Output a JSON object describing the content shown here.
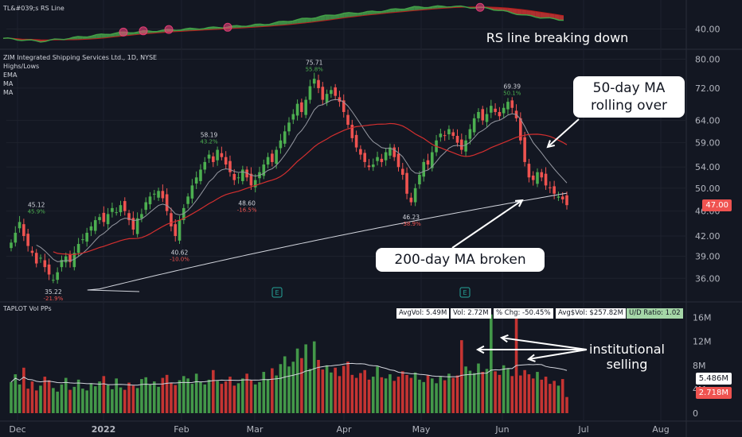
{
  "rs_panel": {
    "legend": "TL&#039;s RS Line",
    "axis_label": "40.00",
    "annotation": "RS line breaking down"
  },
  "price_panel": {
    "legend_title": "ZIM Integrated Shipping Services Ltd., 1D, NYSE",
    "legend_items": [
      "Highs/Lows",
      "EMA",
      "MA",
      "MA"
    ],
    "price_badge": "47.00",
    "earnings_marker": "E",
    "annotations": {
      "ma50": "50-day MA rolling over",
      "ma200": "200-day MA broken"
    }
  },
  "volume_panel": {
    "legend": "TAPLOT Vol PPs",
    "stats": [
      {
        "label": "AvgVol: 5.49M",
        "color": "#ffffff"
      },
      {
        "label": "Vol: 2.72M",
        "color": "#ffffff"
      },
      {
        "label": "% Chg: -50.45%",
        "color": "#ffffff"
      },
      {
        "label": "Avg$Vol: $257.82M",
        "color": "#ffffff"
      },
      {
        "label": "U/D Ratio: 1.02",
        "color": "#a5d6a7"
      }
    ],
    "badges": {
      "avg": "5.486M",
      "vol": "2.718M"
    },
    "annotation": "institutional selling"
  },
  "colors": {
    "background": "#131722",
    "up": "#26a69a",
    "up_bright": "#4caf50",
    "down": "#ef5350",
    "ma50": "#d32f2f",
    "ema": "#9598a1",
    "ma200": "#d1d4dc",
    "vol_up": "#4caf50",
    "vol_down": "#e53935"
  },
  "chart_data": [
    {
      "type": "line",
      "name": "rs-line",
      "title": "TL&#039;s RS Line",
      "x": [
        "Dec 10",
        "Dec 20",
        "Jan 1",
        "Jan 15",
        "Feb 1",
        "Feb 15",
        "Mar 1",
        "Mar 15",
        "Apr 1",
        "Apr 15",
        "May 1",
        "May 15",
        "Jun 1",
        "Jun 10",
        "Jun 20",
        "Jun 28"
      ],
      "series": [
        {
          "values": [
            38.2,
            37.6,
            38.4,
            39.2,
            39.6,
            40.0,
            40.4,
            40.9,
            41.9,
            42.9,
            43.4,
            44.2,
            44.4,
            44.0,
            42.6,
            41.7
          ]
        }
      ],
      "ylim": [
        37,
        45
      ],
      "yticks": [
        40.0
      ]
    },
    {
      "type": "candlestick",
      "name": "zim-price",
      "title": "ZIM Integrated Shipping Services Ltd., 1D, NYSE",
      "x_ticks": [
        "Dec",
        "2022",
        "Feb",
        "Mar",
        "Apr",
        "May",
        "Jun",
        "Jul",
        "Aug"
      ],
      "y_ticks": [
        36.0,
        39.0,
        42.0,
        46.0,
        50.0,
        54.0,
        59.0,
        64.0,
        72.0,
        80.0
      ],
      "ylim": [
        34,
        82
      ],
      "y_scale": "log",
      "last_price": 47.0,
      "highs_lows": [
        {
          "date": "Dec 13",
          "type": "high",
          "value": "45.12",
          "pct": "45.9%"
        },
        {
          "date": "Dec 21",
          "type": "low",
          "value": "35.22",
          "pct": "-21.9%"
        },
        {
          "date": "Jan 27",
          "type": "low",
          "value": "40.62",
          "pct": "-10.0%"
        },
        {
          "date": "Feb 3",
          "type": "high",
          "value": "58.19",
          "pct": "43.2%"
        },
        {
          "date": "Feb 23",
          "type": "low",
          "value": "48.60",
          "pct": "-16.5%"
        },
        {
          "date": "Mar 25",
          "type": "high",
          "value": "75.71",
          "pct": "55.8%"
        },
        {
          "date": "Apr 21",
          "type": "low",
          "value": "46.23",
          "pct": "-38.9%"
        },
        {
          "date": "Jun 8",
          "type": "high",
          "value": "69.39",
          "pct": "50.1%"
        }
      ],
      "closes": [
        41.0,
        42.5,
        44.2,
        42.0,
        40.5,
        39.5,
        38.0,
        38.8,
        37.5,
        36.5,
        35.8,
        36.8,
        38.5,
        39.0,
        38.2,
        39.5,
        40.8,
        41.5,
        42.5,
        43.5,
        44.5,
        45.0,
        44.2,
        45.5,
        46.5,
        45.8,
        47.0,
        46.0,
        44.5,
        43.0,
        44.8,
        45.5,
        47.5,
        48.5,
        49.0,
        49.5,
        48.2,
        46.0,
        43.5,
        42.0,
        44.5,
        46.5,
        48.5,
        50.5,
        52.0,
        53.5,
        55.0,
        56.5,
        55.0,
        57.5,
        56.0,
        54.5,
        53.0,
        51.5,
        52.0,
        53.5,
        52.0,
        50.5,
        51.5,
        53.0,
        54.5,
        56.0,
        55.0,
        57.5,
        59.5,
        61.5,
        63.5,
        65.5,
        68.0,
        66.0,
        69.0,
        72.5,
        74.5,
        72.0,
        69.0,
        70.5,
        71.5,
        70.0,
        68.5,
        66.0,
        63.0,
        60.0,
        58.0,
        56.5,
        55.0,
        54.0,
        54.5,
        56.0,
        55.0,
        57.0,
        58.0,
        56.0,
        54.0,
        52.5,
        49.0,
        47.5,
        50.0,
        52.5,
        55.0,
        54.5,
        57.0,
        59.5,
        61.0,
        60.5,
        62.0,
        60.5,
        59.0,
        57.5,
        59.5,
        62.0,
        64.5,
        66.0,
        64.0,
        65.5,
        67.5,
        66.0,
        65.0,
        67.0,
        68.5,
        67.0,
        64.5,
        59.5,
        55.0,
        52.0,
        51.5,
        53.0,
        52.0,
        50.5,
        50.0,
        49.0,
        48.5,
        48.0,
        47.0
      ],
      "ema_label": "EMA",
      "ma_labels": [
        "MA",
        "MA"
      ]
    },
    {
      "type": "bar",
      "name": "volume",
      "title": "TAPLOT Vol PPs",
      "y_ticks": [
        "0",
        "4M",
        "8M",
        "12M",
        "16M"
      ],
      "ylim": [
        0,
        17
      ],
      "units": "M",
      "avg_volume": 5.49,
      "last_volume": 2.72,
      "values": [
        5.2,
        6.5,
        4.8,
        7.6,
        4.1,
        5.3,
        3.8,
        4.6,
        6.1,
        5.5,
        4.2,
        3.6,
        4.8,
        5.9,
        3.9,
        4.4,
        5.6,
        4.1,
        3.8,
        5.0,
        4.5,
        5.3,
        6.2,
        4.7,
        4.0,
        5.8,
        4.3,
        3.9,
        5.1,
        4.6,
        4.2,
        5.7,
        6.0,
        4.8,
        5.3,
        4.4,
        5.9,
        6.4,
        5.1,
        4.7,
        5.5,
        6.2,
        5.8,
        4.9,
        6.6,
        5.2,
        4.8,
        5.6,
        7.2,
        5.4,
        4.9,
        5.3,
        6.1,
        4.6,
        5.0,
        5.8,
        6.6,
        5.5,
        4.8,
        5.2,
        6.9,
        5.7,
        7.5,
        6.3,
        8.2,
        9.5,
        7.8,
        8.6,
        10.8,
        9.2,
        11.5,
        7.4,
        12.0,
        8.9,
        7.3,
        8.0,
        6.8,
        7.6,
        6.2,
        7.9,
        8.6,
        6.4,
        5.9,
        6.7,
        7.2,
        5.6,
        6.1,
        7.8,
        6.0,
        5.8,
        6.5,
        5.4,
        6.1,
        7.0,
        6.4,
        5.9,
        6.8,
        5.6,
        5.2,
        6.3,
        5.8,
        5.0,
        6.1,
        5.5,
        6.6,
        5.9,
        6.3,
        12.2,
        7.8,
        7.1,
        6.7,
        8.3,
        6.9,
        7.4,
        16.5,
        7.0,
        6.4,
        8.0,
        7.5,
        6.2,
        16.0,
        6.3,
        7.2,
        6.5,
        5.8,
        6.9,
        5.6,
        6.1,
        4.9,
        5.4,
        4.6,
        5.7,
        2.7
      ],
      "directions": "mixed",
      "annotation": "institutional selling"
    }
  ]
}
